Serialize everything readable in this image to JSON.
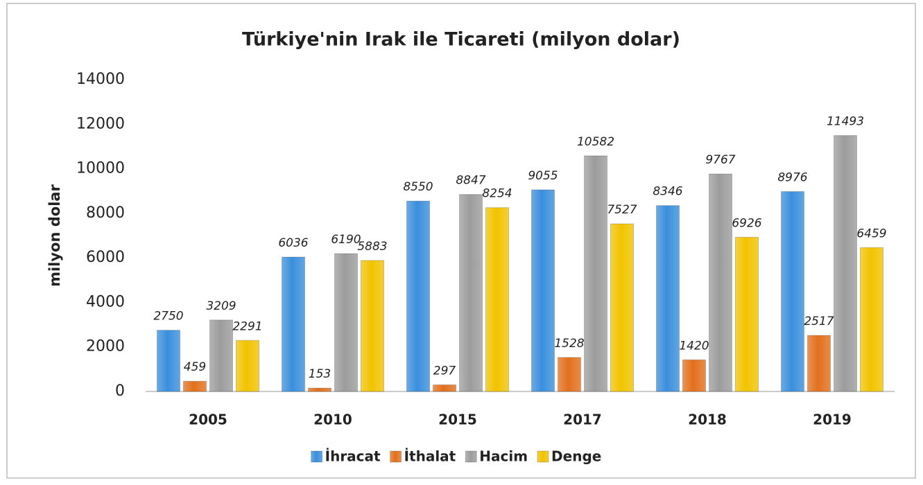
{
  "chart_data": {
    "type": "bar",
    "title": "Türkiye'nin Irak ile Ticareti (milyon dolar)",
    "y_label": "milyon dolar",
    "categories": [
      "2005",
      "2010",
      "2015",
      "2017",
      "2018",
      "2019"
    ],
    "series": [
      {
        "name": "İhracat",
        "color": "#3a8fdc",
        "values": [
          2750,
          6036,
          8550,
          9055,
          8346,
          8976
        ]
      },
      {
        "name": "İthalat",
        "color": "#e2701c",
        "values": [
          459,
          153,
          297,
          1528,
          1420,
          2517
        ]
      },
      {
        "name": "Hacim",
        "color": "#9c9c9c",
        "values": [
          3209,
          6190,
          8847,
          10582,
          9767,
          11493
        ]
      },
      {
        "name": "Denge",
        "color": "#f2c300",
        "values": [
          2291,
          5883,
          8254,
          7527,
          6926,
          6459
        ]
      }
    ],
    "ylim": [
      0,
      14000
    ],
    "yticks": [
      0,
      2000,
      4000,
      6000,
      8000,
      10000,
      12000,
      14000
    ],
    "grid": false,
    "legend": "bottom"
  }
}
